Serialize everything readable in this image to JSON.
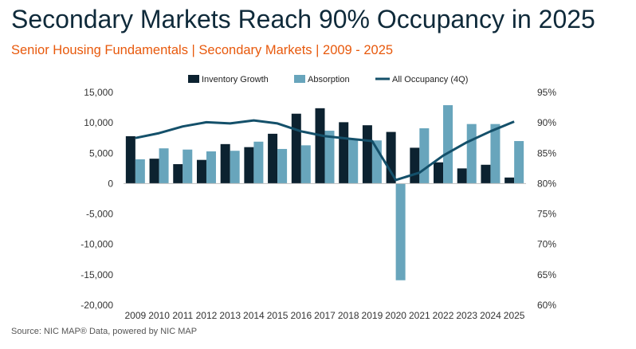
{
  "header": {
    "title": "Secondary Markets Reach 90% Occupancy in 2025",
    "subtitle": "Senior Housing Fundamentals | Secondary Markets | 2009 - 2025"
  },
  "footer": {
    "source": "Source: NIC MAP® Data, powered by NIC MAP"
  },
  "colors": {
    "inventory": "#0c2230",
    "absorption": "#68a5bc",
    "occupancy": "#14506a"
  },
  "chart_data": {
    "type": "bar",
    "title": "Secondary Markets Reach 90% Occupancy in 2025",
    "subtitle": "Senior Housing Fundamentals | Secondary Markets | 2009 - 2025",
    "categories": [
      "2009",
      "2010",
      "2011",
      "2012",
      "2013",
      "2014",
      "2015",
      "2016",
      "2017",
      "2018",
      "2019",
      "2020",
      "2021",
      "2022",
      "2023",
      "2024",
      "2025"
    ],
    "series": [
      {
        "name": "Inventory Growth",
        "type": "bar",
        "axis": "left",
        "values": [
          7800,
          4100,
          3200,
          3900,
          6500,
          6000,
          8200,
          11500,
          12400,
          10100,
          9600,
          8500,
          5900,
          3500,
          2500,
          3100,
          1000
        ]
      },
      {
        "name": "Absorption",
        "type": "bar",
        "axis": "left",
        "values": [
          4000,
          5800,
          5600,
          5300,
          5400,
          6900,
          5700,
          6300,
          8700,
          7300,
          7100,
          -15900,
          9100,
          12900,
          9800,
          9800,
          7000
        ]
      },
      {
        "name": "All Occupancy (4Q)",
        "type": "line",
        "axis": "right",
        "values": [
          87.5,
          88.3,
          89.4,
          90.1,
          89.9,
          90.4,
          89.9,
          88.6,
          87.8,
          87.4,
          87.0,
          80.6,
          81.8,
          84.6,
          86.8,
          88.6,
          90.2
        ]
      }
    ],
    "y_left": {
      "min": -20000,
      "max": 15000,
      "step": 5000,
      "tick_labels": [
        "15,000",
        "10,000",
        "5,000",
        "0",
        "-5,000",
        "-10,000",
        "-15,000",
        "-20,000"
      ]
    },
    "y_right": {
      "min": 60,
      "max": 95,
      "step": 5,
      "tick_labels": [
        "95%",
        "90%",
        "85%",
        "80%",
        "75%",
        "70%",
        "65%",
        "60%"
      ]
    },
    "grid": false,
    "legend_position": "top"
  }
}
